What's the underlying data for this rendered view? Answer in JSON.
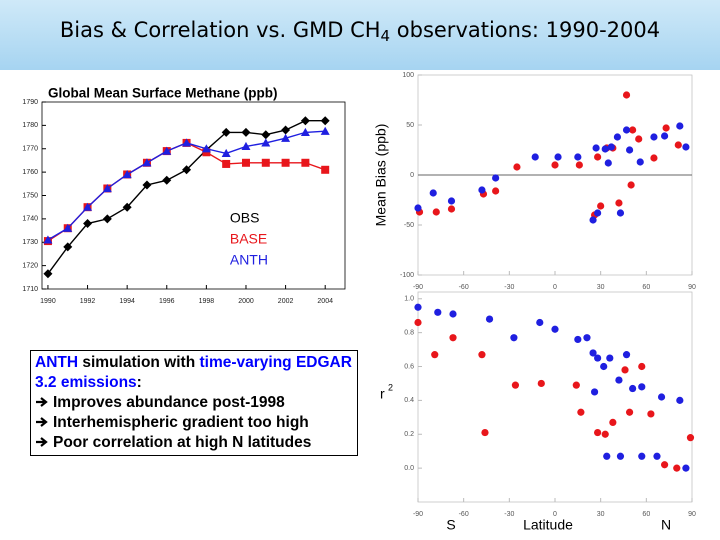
{
  "slide": {
    "title_parts": [
      "Bias & Correlation vs. GMD CH",
      "4",
      " observations: 1990-2004"
    ],
    "note": {
      "runs": [
        {
          "text": "ANTH",
          "color": "#0000ff"
        },
        {
          "text": " simulation with ",
          "color": "#000000"
        },
        {
          "text": "time-varying EDGAR 3.2 emissions",
          "color": "#0000ff"
        },
        {
          "text": ":",
          "color": "#000000"
        }
      ],
      "bullets": [
        "Improves abundance post-1998",
        "Interhemispheric gradient too high",
        "Poor correlation at high N latitudes"
      ]
    }
  },
  "chart_data": [
    {
      "type": "line",
      "title": "Global Mean Surface Methane (ppb)",
      "x": [
        1990,
        1991,
        1992,
        1993,
        1994,
        1995,
        1996,
        1997,
        1998,
        1999,
        2000,
        2001,
        2002,
        2003,
        2004
      ],
      "xlim": [
        1989.7,
        2005.0
      ],
      "xticks": [
        1990,
        1992,
        1994,
        1996,
        1998,
        2000,
        2002,
        2004
      ],
      "ylim": [
        1710,
        1790
      ],
      "yticks": [
        1710,
        1720,
        1730,
        1740,
        1750,
        1760,
        1770,
        1780,
        1790
      ],
      "legend": "lower right",
      "series": [
        {
          "name": "OBS",
          "color": "#000000",
          "marker": "diamond",
          "values": [
            1716.5,
            1728,
            1738,
            1740,
            1745,
            1754.5,
            1756.5,
            1761,
            1769.5,
            1777,
            1777,
            1776,
            1778,
            1782,
            1782
          ]
        },
        {
          "name": "BASE",
          "color": "#e8161b",
          "marker": "square",
          "values": [
            1730.5,
            1736,
            1745,
            1753,
            1759,
            1764,
            1769,
            1772.5,
            1768.5,
            1763.5,
            1764,
            1764,
            1764,
            1764,
            1761
          ]
        },
        {
          "name": "ANTH",
          "color": "#1f1fe0",
          "marker": "triangle",
          "values": [
            1731,
            1736,
            1745,
            1753,
            1759,
            1764,
            1769,
            1772.5,
            1770,
            1768,
            1771,
            1772.5,
            1774.5,
            1777,
            1777.5
          ]
        }
      ]
    },
    {
      "type": "scatter",
      "ylabel": "Mean Bias (ppb)",
      "xlim": [
        -90,
        90
      ],
      "xticks": [
        -90,
        -60,
        -30,
        0,
        30,
        60,
        90
      ],
      "ylim": [
        -100,
        100
      ],
      "yticks": [
        -100,
        -50,
        0,
        50,
        100
      ],
      "series": [
        {
          "color": "#e8161b",
          "x": [
            -89,
            -78,
            -68,
            -47,
            -39,
            -25,
            0,
            16,
            28,
            34,
            38,
            47,
            42,
            30,
            26,
            51,
            50,
            55,
            65,
            73,
            81
          ],
          "values": [
            -37,
            -37,
            -34,
            -19,
            -16,
            8,
            10,
            10,
            18,
            27,
            27,
            80,
            -28,
            -31,
            -40,
            45,
            -10,
            36,
            17,
            47,
            30
          ]
        },
        {
          "color": "#1f1fe0",
          "x": [
            -90,
            -80,
            -68,
            -48,
            -39,
            -13,
            2,
            15,
            27,
            33,
            37,
            41,
            43,
            28,
            25,
            47,
            49,
            56,
            65,
            72,
            82,
            86,
            35
          ],
          "values": [
            -33,
            -18,
            -26,
            -15,
            -3,
            18,
            18,
            18,
            27,
            26,
            28,
            38,
            -38,
            -38,
            -45,
            45,
            25,
            13,
            38,
            39,
            49,
            28,
            12
          ]
        }
      ]
    },
    {
      "type": "scatter",
      "ylabel_parts": [
        "r",
        "2"
      ],
      "xlabel": "Latitude",
      "annotations": [
        "S",
        "N"
      ],
      "xlim": [
        -90,
        90
      ],
      "xticks": [
        -90,
        -60,
        -30,
        0,
        30,
        60,
        90
      ],
      "ylim": [
        -0.2,
        1.04
      ],
      "yticks": [
        {
          "value": 0,
          "label": "0.0"
        },
        0.2,
        0.4,
        0.6,
        0.8,
        {
          "value": 1,
          "label": "1.0"
        }
      ],
      "series": [
        {
          "color": "#e8161b",
          "x": [
            -90,
            -79,
            -67,
            -48,
            -46,
            -26,
            -9,
            14,
            28,
            33,
            38,
            46,
            49,
            57,
            63,
            72,
            80,
            89,
            17
          ],
          "values": [
            0.86,
            0.67,
            0.77,
            0.67,
            0.21,
            0.49,
            0.5,
            0.49,
            0.21,
            0.2,
            0.27,
            0.58,
            0.33,
            0.6,
            0.32,
            0.02,
            0.0,
            0.18,
            0.33
          ]
        },
        {
          "color": "#1f1fe0",
          "x": [
            -90,
            -77,
            -67,
            -43,
            -27,
            -10,
            0,
            15,
            21,
            25,
            28,
            32,
            36,
            42,
            47,
            51,
            57,
            70,
            82,
            34,
            43,
            57,
            67,
            86,
            26
          ],
          "values": [
            0.95,
            0.92,
            0.91,
            0.88,
            0.77,
            0.86,
            0.82,
            0.76,
            0.77,
            0.68,
            0.65,
            0.6,
            0.65,
            0.52,
            0.67,
            0.47,
            0.48,
            0.42,
            0.4,
            0.07,
            0.07,
            0.07,
            0.07,
            0.0,
            0.45
          ]
        }
      ]
    }
  ]
}
